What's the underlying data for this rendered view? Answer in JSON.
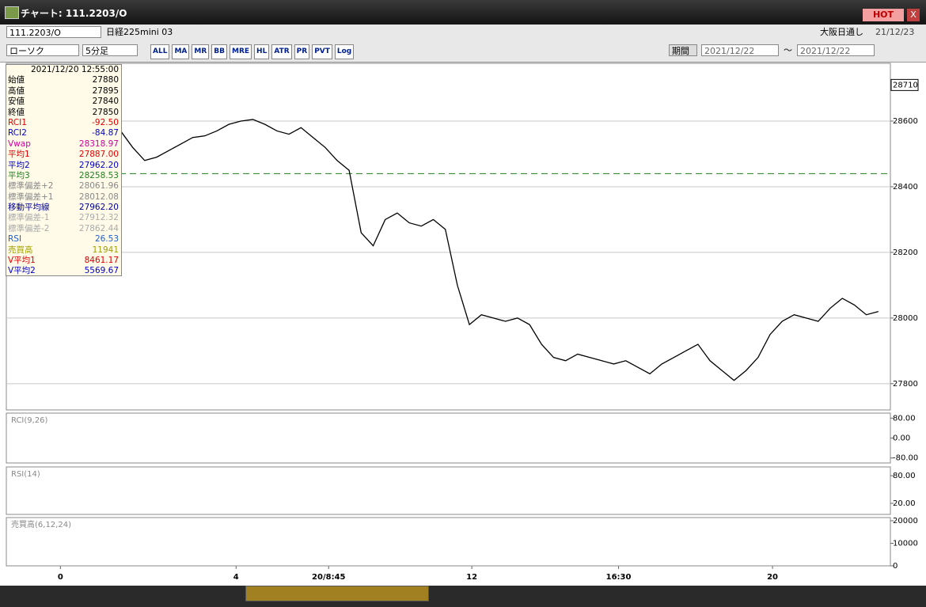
{
  "window": {
    "title": "チャート: 111.2203/O",
    "hot": "HOT",
    "close": "X"
  },
  "toolbar": {
    "symbol": "111.2203/O",
    "instrument": "日経225mini 03",
    "session": "大阪日通し",
    "date": "21/12/23",
    "chart_kind": "ローソク",
    "interval": "5分足",
    "icons": [
      "ALL",
      "MA",
      "MR",
      "BB",
      "MRE",
      "HL",
      "ATR",
      "PR",
      "PVT",
      "Log"
    ],
    "period": "期間",
    "from": "2021/12/22",
    "tilde": "〜",
    "to": "2021/12/22"
  },
  "info_panel": {
    "time": "2021/12/20 12:55:00",
    "rows": [
      {
        "label": "始値",
        "value": "27880",
        "color": "#000000"
      },
      {
        "label": "高値",
        "value": "27895",
        "color": "#000000"
      },
      {
        "label": "安値",
        "value": "27840",
        "color": "#000000"
      },
      {
        "label": "終値",
        "value": "27850",
        "color": "#000000"
      },
      {
        "label": "RCI1",
        "value": "-92.50",
        "color": "#e00000"
      },
      {
        "label": "RCI2",
        "value": "-84.87",
        "color": "#0000cc"
      },
      {
        "label": "Vwap",
        "value": "28318.97",
        "color": "#d000a0"
      },
      {
        "label": "平均1",
        "value": "27887.00",
        "color": "#e00000"
      },
      {
        "label": "平均2",
        "value": "27962.20",
        "color": "#0000cc"
      },
      {
        "label": "平均3",
        "value": "28258.53",
        "color": "#208020"
      },
      {
        "label": "標準偏差+2",
        "value": "28061.96",
        "color": "#888888"
      },
      {
        "label": "標準偏差+1",
        "value": "28012.08",
        "color": "#888888"
      },
      {
        "label": "移動平均線",
        "value": "27962.20",
        "color": "#000099"
      },
      {
        "label": "標準偏差-1",
        "value": "27912.32",
        "color": "#aaaaaa"
      },
      {
        "label": "標準偏差-2",
        "value": "27862.44",
        "color": "#aaaaaa"
      },
      {
        "label": "RSI",
        "value": "26.53",
        "color": "#2060d0"
      },
      {
        "label": "売買高",
        "value": "11941",
        "color": "#a0a000"
      },
      {
        "label": "V平均1",
        "value": "8461.17",
        "color": "#e00000"
      },
      {
        "label": "V平均2",
        "value": "5569.67",
        "color": "#0000cc"
      }
    ]
  },
  "chart_data": {
    "type": "line",
    "color": "#000000",
    "x": [
      0,
      1,
      2,
      3,
      4,
      5,
      6,
      7,
      8,
      9,
      10,
      11,
      12,
      13,
      14,
      15,
      16,
      17,
      18,
      19,
      20,
      21,
      22,
      23,
      24,
      25,
      26,
      27,
      28,
      29,
      30,
      31,
      32,
      33,
      34,
      35,
      36,
      37,
      38,
      39,
      40,
      41,
      42,
      43,
      44,
      45,
      46,
      47,
      48,
      49,
      50,
      51,
      52,
      53,
      54,
      55,
      56,
      57,
      58,
      59,
      60,
      61,
      62,
      63
    ],
    "values": [
      28570,
      28520,
      28480,
      28490,
      28510,
      28530,
      28550,
      28555,
      28570,
      28590,
      28600,
      28605,
      28590,
      28570,
      28560,
      28580,
      28550,
      28520,
      28480,
      28450,
      28260,
      28220,
      28300,
      28320,
      28290,
      28280,
      28300,
      28270,
      28100,
      27980,
      28010,
      28000,
      27990,
      28000,
      27980,
      27920,
      27880,
      27870,
      27890,
      27880,
      27870,
      27860,
      27870,
      27850,
      27830,
      27860,
      27880,
      27900,
      27920,
      27870,
      27840,
      27810,
      27840,
      27880,
      27950,
      27990,
      28010,
      28000,
      27990,
      28030,
      28060,
      28040,
      28010,
      28020
    ],
    "xlim": [
      -9.5,
      64
    ],
    "ylim": [
      27720,
      28776
    ],
    "xticks": [
      {
        "value": -5,
        "label": "0"
      },
      {
        "value": 9.6,
        "label": "4"
      },
      {
        "value": 17.3,
        "label": "20/8:45"
      },
      {
        "value": 29.2,
        "label": "12"
      },
      {
        "value": 41.4,
        "label": "16:30"
      },
      {
        "value": 54.2,
        "label": "20"
      }
    ],
    "yticks": [
      27800,
      28000,
      28200,
      28400,
      28600
    ],
    "last_price": 28710,
    "reference_line": 28440,
    "reference_color": "#208020",
    "grid": true
  },
  "panels": [
    {
      "label": "RCI(9,26)",
      "ylim": [
        -100,
        100
      ],
      "yticks": [
        {
          "value": 80,
          "label": "80.00"
        },
        {
          "value": 0,
          "label": "0.00"
        },
        {
          "value": -80,
          "label": "-80.00"
        }
      ]
    },
    {
      "label": "RSI(14)",
      "ylim": [
        -4,
        99
      ],
      "yticks": [
        {
          "value": 80,
          "label": "80.00"
        },
        {
          "value": 20,
          "label": "20.00"
        }
      ]
    },
    {
      "label": "売買高(6,12,24)",
      "ylim": [
        0,
        21400
      ],
      "yticks": [
        20000,
        10000,
        0
      ]
    }
  ]
}
